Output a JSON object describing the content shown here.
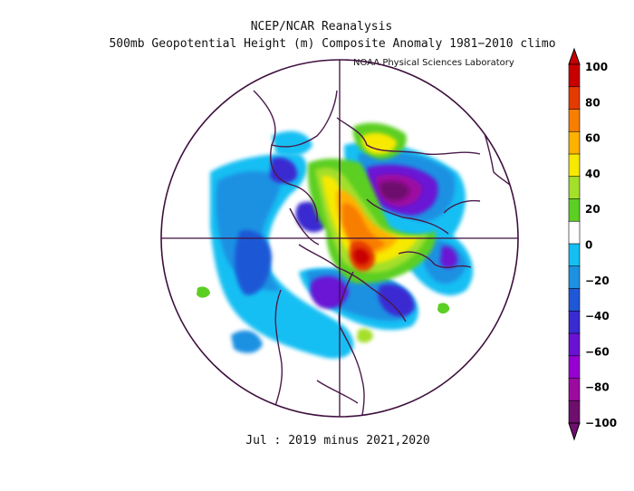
{
  "header": {
    "line1": "NCEP/NCAR Reanalysis",
    "line2": "500mb Geopotential Height (m) Composite Anomaly 1981−2010 climo"
  },
  "credit": "NOAA Physical Sciences Laboratory",
  "footer": "Jul : 2019 minus 2021,2020",
  "colorbar": {
    "labels": [
      "100",
      "80",
      "60",
      "40",
      "20",
      "0",
      "−20",
      "−40",
      "−60",
      "−80",
      "−100"
    ],
    "colors": [
      "#c80000",
      "#e53a00",
      "#f87e00",
      "#ffb100",
      "#f7e900",
      "#a4df2a",
      "#5ccf23",
      "#ffffff",
      "#14bff3",
      "#1d91e2",
      "#1f58d6",
      "#3a2ad2",
      "#6a12d4",
      "#9600d2",
      "#9d0aa0",
      "#6e0f6e"
    ]
  },
  "map": {
    "projection": "north-polar-stereographic",
    "anomaly_blobs": [
      {
        "region": "eastern-siberia",
        "level": -60
      },
      {
        "region": "barents-kara",
        "level": -80
      },
      {
        "region": "greenland-baffin",
        "level": 80
      },
      {
        "region": "canada-hudson",
        "level": 100
      },
      {
        "region": "central-arctic",
        "level": 60
      },
      {
        "region": "north-atlantic",
        "level": 40
      },
      {
        "region": "scandinavia",
        "level": 20
      },
      {
        "region": "alaska-bering",
        "level": -60
      },
      {
        "region": "north-pacific",
        "level": -40
      },
      {
        "region": "western-us",
        "level": -60
      },
      {
        "region": "eastern-canada",
        "level": -40
      },
      {
        "region": "europe",
        "level": -40
      },
      {
        "region": "southwest-pacific-fringe",
        "level": 20
      }
    ]
  }
}
